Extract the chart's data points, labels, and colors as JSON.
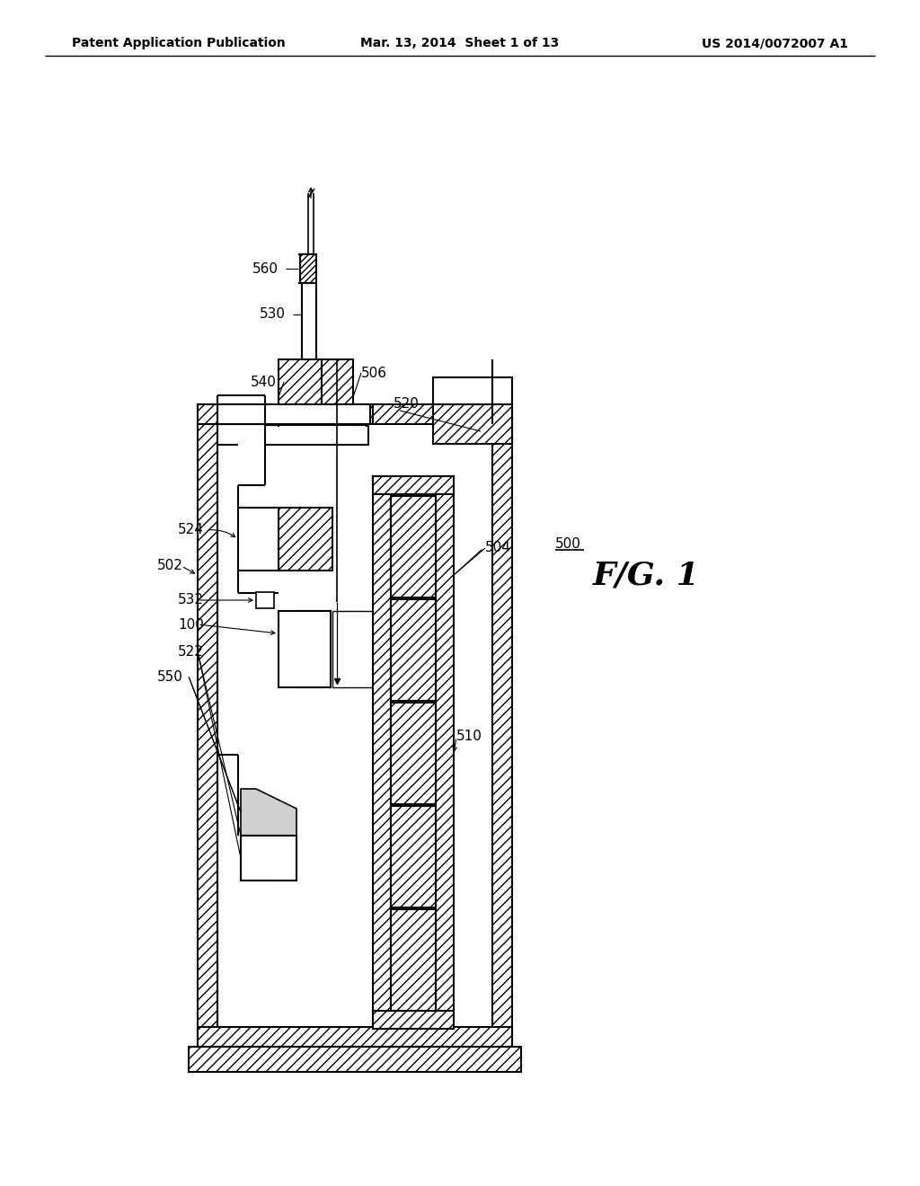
{
  "header_left": "Patent Application Publication",
  "header_mid": "Mar. 13, 2014  Sheet 1 of 13",
  "header_right": "US 2014/0072007 A1",
  "fig_label": "F/G. 1",
  "bg_color": "#ffffff"
}
